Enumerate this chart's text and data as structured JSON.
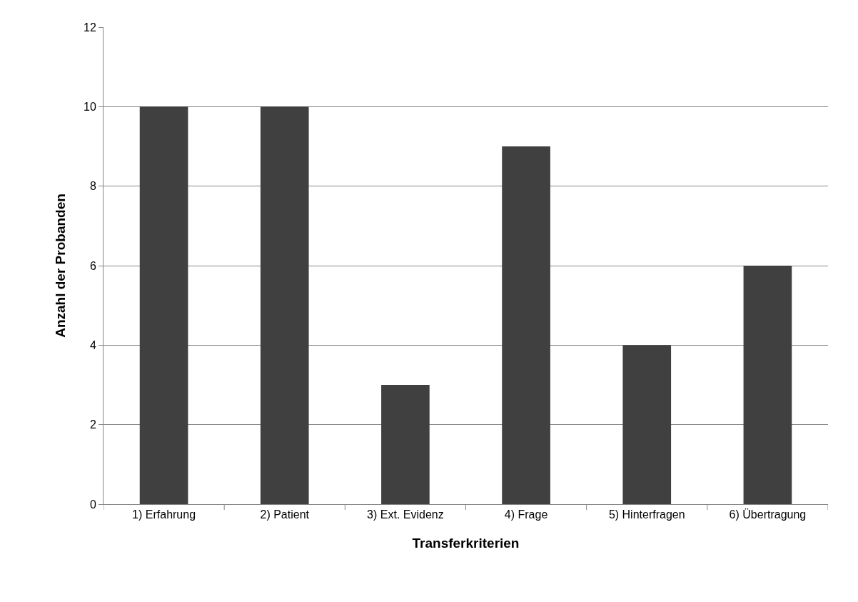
{
  "chart_data": {
    "type": "bar",
    "xlabel": "Transferkriterien",
    "ylabel": "Anzahl der Probanden",
    "categories": [
      "1) Erfahrung",
      "2) Patient",
      "3) Ext. Evidenz",
      "4) Frage",
      "5) Hinterfragen",
      "6) Übertragung"
    ],
    "values": [
      10,
      10,
      3,
      9,
      4,
      6
    ],
    "color": "#404040",
    "ylim": [
      0,
      12
    ],
    "yticks": [
      0,
      2,
      4,
      6,
      8,
      10,
      12
    ],
    "grid": "y",
    "legend": false
  }
}
